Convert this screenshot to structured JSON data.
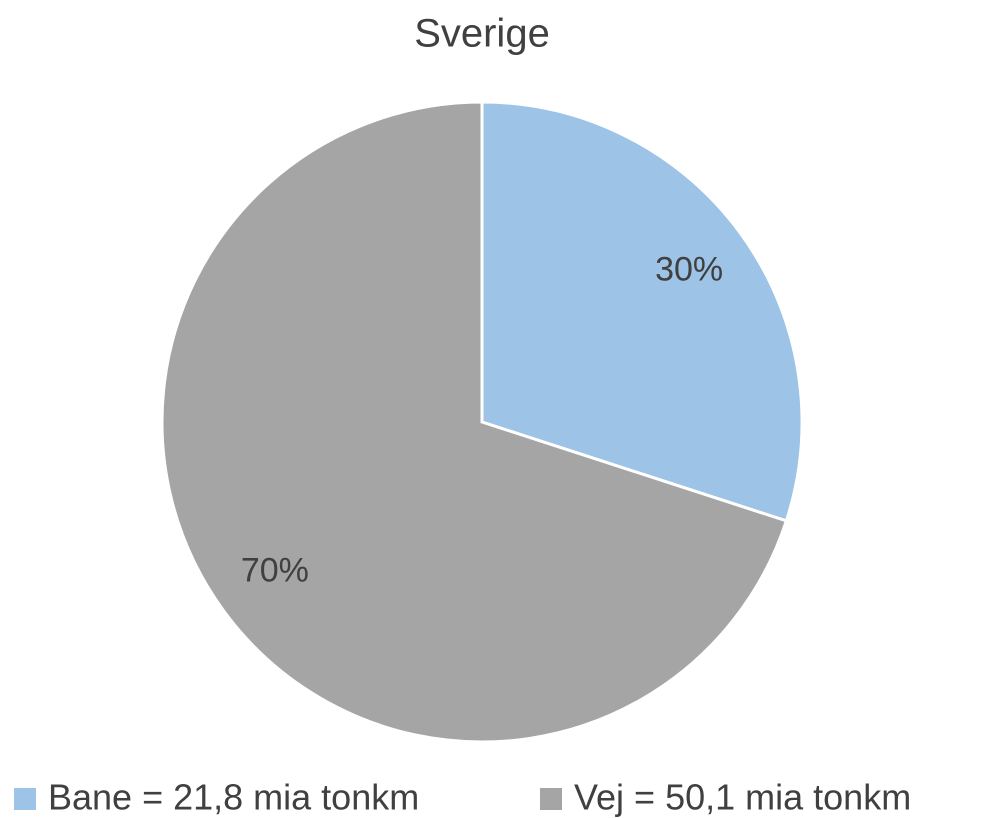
{
  "chart_data": {
    "type": "pie",
    "title": "Sverige",
    "categories": [
      "Bane = 21,8 mia tonkm",
      "Vej = 50,1 mia tonkm"
    ],
    "values": [
      30,
      70
    ],
    "value_labels": [
      "30%",
      "70%"
    ],
    "colors": [
      "#9dc3e6",
      "#a5a5a5"
    ],
    "legend": "bottom"
  }
}
